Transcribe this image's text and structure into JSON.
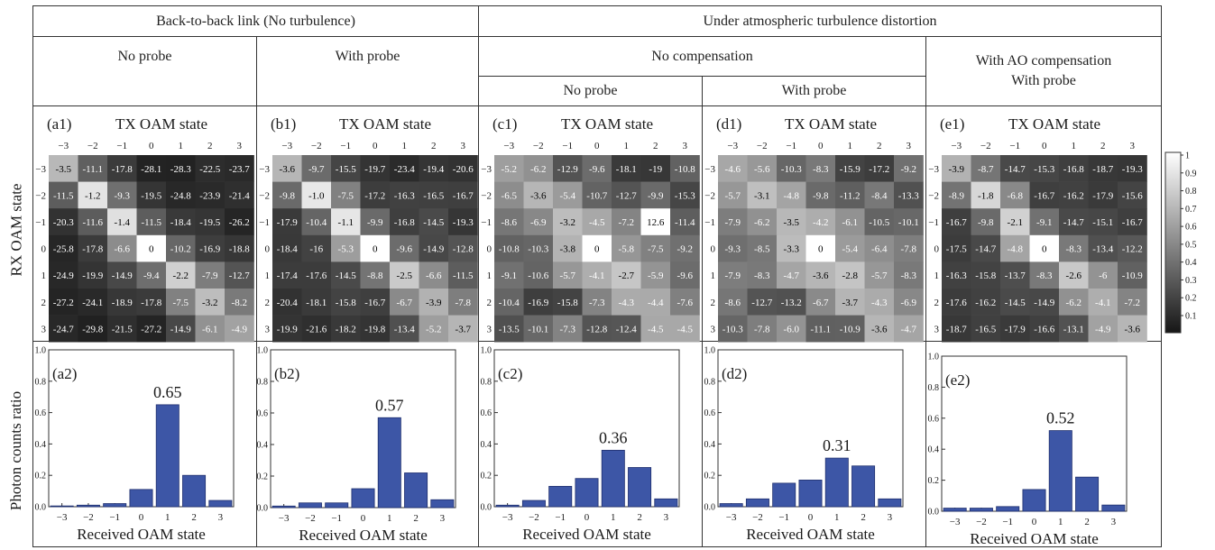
{
  "headers": {
    "b2b": "Back-to-back link (No turbulence)",
    "turb": "Under atmospheric turbulence distortion",
    "no_probe": "No probe",
    "with_probe": "With probe",
    "no_comp": "No compensation",
    "ao_comp_line1": "With AO compensation",
    "ao_comp_line2": "With probe",
    "no_probe_c": "No probe",
    "with_probe_d": "With probe"
  },
  "axis_titles": {
    "rx": "RX OAM state",
    "photon": "Photon counts ratio",
    "tx": "TX OAM state",
    "received": "Received OAM state"
  },
  "colorbar": {
    "ticks": [
      "1",
      "0.9",
      "0.8",
      "0.7",
      "0.6",
      "0.5",
      "0.4",
      "0.3",
      "0.2",
      "0.1"
    ]
  },
  "chart_data": [
    {
      "type": "heatmap",
      "label": "(a1)",
      "x_labels": [
        "−3",
        "−2",
        "−1",
        "0",
        "1",
        "2",
        "3"
      ],
      "y_labels": [
        "−3",
        "−2",
        "−1",
        "0",
        "1",
        "2",
        "3"
      ],
      "values": [
        [
          "-3.5",
          "-11.1",
          "-17.8",
          "-28.1",
          "-28.3",
          "-22.5",
          "-23.7"
        ],
        [
          "-11.5",
          "-1.2",
          "-9.3",
          "-19.5",
          "-24.8",
          "-23.9",
          "-21.4"
        ],
        [
          "-20.3",
          "-11.6",
          "-1.4",
          "-11.5",
          "-18.4",
          "-19.5",
          "-26.2"
        ],
        [
          "-25.8",
          "-17.8",
          "-6.6",
          "0",
          "-10.2",
          "-16.9",
          "-18.8"
        ],
        [
          "-24.9",
          "-19.9",
          "-14.9",
          "-9.4",
          "-2.2",
          "-7.9",
          "-12.7"
        ],
        [
          "-27.2",
          "-24.1",
          "-18.9",
          "-17.8",
          "-7.5",
          "-3.2",
          "-8.2"
        ],
        [
          "-24.7",
          "-29.8",
          "-21.5",
          "-27.2",
          "-14.9",
          "-6.1",
          "-4.9"
        ]
      ]
    },
    {
      "type": "heatmap",
      "label": "(b1)",
      "x_labels": [
        "−3",
        "−2",
        "−1",
        "0",
        "1",
        "2",
        "3"
      ],
      "y_labels": [
        "−3",
        "−2",
        "−1",
        "0",
        "1",
        "2",
        "3"
      ],
      "values": [
        [
          "-3.6",
          "-9.7",
          "-15.5",
          "-19.7",
          "-23.4",
          "-19.4",
          "-20.6"
        ],
        [
          "-9.8",
          "-1.0",
          "-7.5",
          "-17.2",
          "-16.3",
          "-16.5",
          "-16.7"
        ],
        [
          "-17.9",
          "-10.4",
          "-1.1",
          "-9.9",
          "-16.8",
          "-14.5",
          "-19.3"
        ],
        [
          "-18.4",
          "-16",
          "-5.3",
          "0",
          "-9.6",
          "-14.9",
          "-12.8"
        ],
        [
          "-17.4",
          "-17.6",
          "-14.5",
          "-8.8",
          "-2.5",
          "-6.6",
          "-11.5"
        ],
        [
          "-20.4",
          "-18.1",
          "-15.8",
          "-16.7",
          "-6.7",
          "-3.9",
          "-7.8"
        ],
        [
          "-19.9",
          "-21.6",
          "-18.2",
          "-19.8",
          "-13.4",
          "-5.2",
          "-3.7"
        ]
      ]
    },
    {
      "type": "heatmap",
      "label": "(c1)",
      "x_labels": [
        "−3",
        "−2",
        "−1",
        "0",
        "1",
        "2",
        "3"
      ],
      "y_labels": [
        "−3",
        "−2",
        "−1",
        "0",
        "1",
        "2",
        "3"
      ],
      "values": [
        [
          "-5.2",
          "-6.2",
          "-12.9",
          "-9.6",
          "-18.1",
          "-19",
          "-10.8"
        ],
        [
          "-6.5",
          "-3.6",
          "-5.4",
          "-10.7",
          "-12.7",
          "-9.9",
          "-15.3"
        ],
        [
          "-8.6",
          "-6.9",
          "-3.2",
          "-4.5",
          "-7.2",
          "12.6",
          "-11.4"
        ],
        [
          "-10.8",
          "-10.3",
          "-3.8",
          "0",
          "-5.8",
          "-7.5",
          "-9.2"
        ],
        [
          "-9.1",
          "-10.6",
          "-5.7",
          "-4.1",
          "-2.7",
          "-5.9",
          "-9.6"
        ],
        [
          "-10.4",
          "-16.9",
          "-15.8",
          "-7.3",
          "-4.3",
          "-4.4",
          "-7.6"
        ],
        [
          "-13.5",
          "-10.1",
          "-7.3",
          "-12.8",
          "-12.4",
          "-4.5",
          "-4.5"
        ]
      ]
    },
    {
      "type": "heatmap",
      "label": "(d1)",
      "x_labels": [
        "−3",
        "−2",
        "−1",
        "0",
        "1",
        "2",
        "3"
      ],
      "y_labels": [
        "−3",
        "−2",
        "−1",
        "0",
        "1",
        "2",
        "3"
      ],
      "values": [
        [
          "-4.6",
          "-5.6",
          "-10.3",
          "-8.3",
          "-15.9",
          "-17.2",
          "-9.2"
        ],
        [
          "-5.7",
          "-3.1",
          "-4.8",
          "-9.8",
          "-11.2",
          "-8.4",
          "-13.3"
        ],
        [
          "-7.9",
          "-6.2",
          "-3.5",
          "-4.2",
          "-6.1",
          "-10.5",
          "-10.1"
        ],
        [
          "-9.3",
          "-8.5",
          "-3.3",
          "0",
          "-5.4",
          "-6.4",
          "-7.8"
        ],
        [
          "-7.9",
          "-8.3",
          "-4.7",
          "-3.6",
          "-2.8",
          "-5.7",
          "-8.3"
        ],
        [
          "-8.6",
          "-12.7",
          "-13.2",
          "-6.7",
          "-3.7",
          "-4.3",
          "-6.9"
        ],
        [
          "-10.3",
          "-7.8",
          "-6.0",
          "-11.1",
          "-10.9",
          "-3.6",
          "-4.7"
        ]
      ]
    },
    {
      "type": "heatmap",
      "label": "(e1)",
      "x_labels": [
        "−3",
        "−2",
        "−1",
        "0",
        "1",
        "2",
        "3"
      ],
      "y_labels": [
        "−3",
        "−2",
        "−1",
        "0",
        "1",
        "2",
        "3"
      ],
      "values": [
        [
          "-3.9",
          "-8.7",
          "-14.7",
          "-15.3",
          "-16.8",
          "-18.7",
          "-19.3"
        ],
        [
          "-8.9",
          "-1.8",
          "-6.8",
          "-16.7",
          "-16.2",
          "-17.9",
          "-15.6"
        ],
        [
          "-16.7",
          "-9.8",
          "-2.1",
          "-9.1",
          "-14.7",
          "-15.1",
          "-16.7"
        ],
        [
          "-17.5",
          "-14.7",
          "-4.8",
          "0",
          "-8.3",
          "-13.4",
          "-12.2"
        ],
        [
          "-16.3",
          "-15.8",
          "-13.7",
          "-8.3",
          "-2.6",
          "-6",
          "-10.9"
        ],
        [
          "-17.6",
          "-16.2",
          "-14.5",
          "-14.9",
          "-6.2",
          "-4.1",
          "-7.2"
        ],
        [
          "-18.7",
          "-16.5",
          "-17.9",
          "-16.6",
          "-13.1",
          "-4.9",
          "-3.6"
        ]
      ]
    },
    {
      "type": "bar",
      "label": "(a2)",
      "annotation": "0.65",
      "categories": [
        "−3",
        "−2",
        "−1",
        "0",
        "1",
        "2",
        "3"
      ],
      "values": [
        0.005,
        0.01,
        0.02,
        0.11,
        0.65,
        0.2,
        0.04
      ],
      "ylim": [
        0,
        1.0
      ],
      "yticks": [
        "0.0",
        "0.2",
        "0.4",
        "0.6",
        "0.8",
        "1.0"
      ]
    },
    {
      "type": "bar",
      "label": "(b2)",
      "annotation": "0.57",
      "categories": [
        "−3",
        "−2",
        "−1",
        "0",
        "1",
        "2",
        "3"
      ],
      "values": [
        0.01,
        0.03,
        0.03,
        0.12,
        0.57,
        0.22,
        0.05
      ],
      "ylim": [
        0,
        1.0
      ],
      "yticks": [
        "0.0",
        "0.2",
        "0.4",
        "0.6",
        "0.8",
        "1.0"
      ]
    },
    {
      "type": "bar",
      "label": "(c2)",
      "annotation": "0.36",
      "categories": [
        "−3",
        "−2",
        "−1",
        "0",
        "1",
        "2",
        "3"
      ],
      "values": [
        0.01,
        0.04,
        0.13,
        0.18,
        0.36,
        0.25,
        0.05
      ],
      "ylim": [
        0,
        1.0
      ],
      "yticks": [
        "0.0",
        "0.2",
        "0.4",
        "0.6",
        "0.8",
        "1.0"
      ]
    },
    {
      "type": "bar",
      "label": "(d2)",
      "annotation": "0.31",
      "categories": [
        "−3",
        "−2",
        "−1",
        "0",
        "1",
        "2",
        "3"
      ],
      "values": [
        0.02,
        0.05,
        0.15,
        0.17,
        0.31,
        0.26,
        0.05
      ],
      "ylim": [
        0,
        1.0
      ],
      "yticks": [
        "0.0",
        "0.2",
        "0.4",
        "0.6",
        "0.8",
        "1.0"
      ]
    },
    {
      "type": "bar",
      "label": "(e2)",
      "annotation": "0.52",
      "categories": [
        "−3",
        "−2",
        "−1",
        "0",
        "1",
        "2",
        "3"
      ],
      "values": [
        0.02,
        0.02,
        0.03,
        0.14,
        0.52,
        0.22,
        0.04
      ],
      "ylim": [
        0,
        1.0
      ],
      "yticks": [
        "0.0",
        "0.2",
        "0.4",
        "0.6",
        "0.8",
        "1.0"
      ]
    }
  ],
  "colors": {
    "bar": "#3d56a6",
    "bar_stroke": "#1f2f6e",
    "grid_line": "#333333"
  }
}
